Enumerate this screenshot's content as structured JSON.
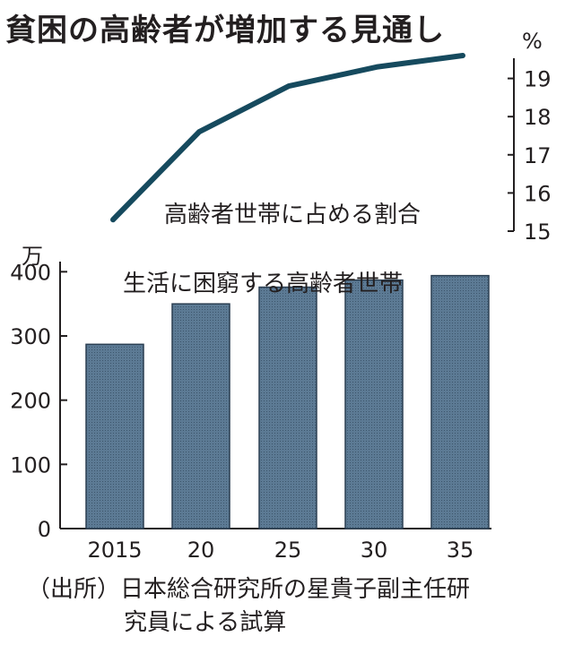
{
  "title": "貧困の高齢者が増加する見通し",
  "source": {
    "line1": "（出所）日本総合研究所の星貴子副主任研",
    "line2": "究員による試算"
  },
  "colors": {
    "line": "#164a5e",
    "bar": "#5c7a94",
    "bar_stroke": "#2b3f52",
    "axis": "#231f20"
  },
  "chart_data": [
    {
      "type": "line",
      "title": "高齢者世帯に占める割合",
      "y_unit": "%",
      "x": [
        "2015",
        "2020",
        "2025",
        "2030",
        "2035"
      ],
      "series": [
        {
          "values": [
            15.3,
            17.6,
            18.8,
            19.3,
            19.6
          ]
        }
      ],
      "ylim": [
        15,
        19.6
      ],
      "yticks": [
        "15",
        "16",
        "17",
        "18",
        "19"
      ],
      "ytick_values": [
        15,
        16,
        17,
        18,
        19
      ],
      "y_axis_side": "right",
      "grid": false
    },
    {
      "type": "bar",
      "title": "生活に困窮する高齢者世帯",
      "y_unit": "万",
      "categories": [
        "2015",
        "20",
        "25",
        "30",
        "35"
      ],
      "values": [
        287,
        350,
        376,
        387,
        394
      ],
      "ylim": [
        0,
        420
      ],
      "yticks": [
        "0",
        "100",
        "200",
        "300",
        "400"
      ],
      "ytick_values": [
        0,
        100,
        200,
        300,
        400
      ],
      "y_axis_side": "left",
      "grid": false
    }
  ]
}
